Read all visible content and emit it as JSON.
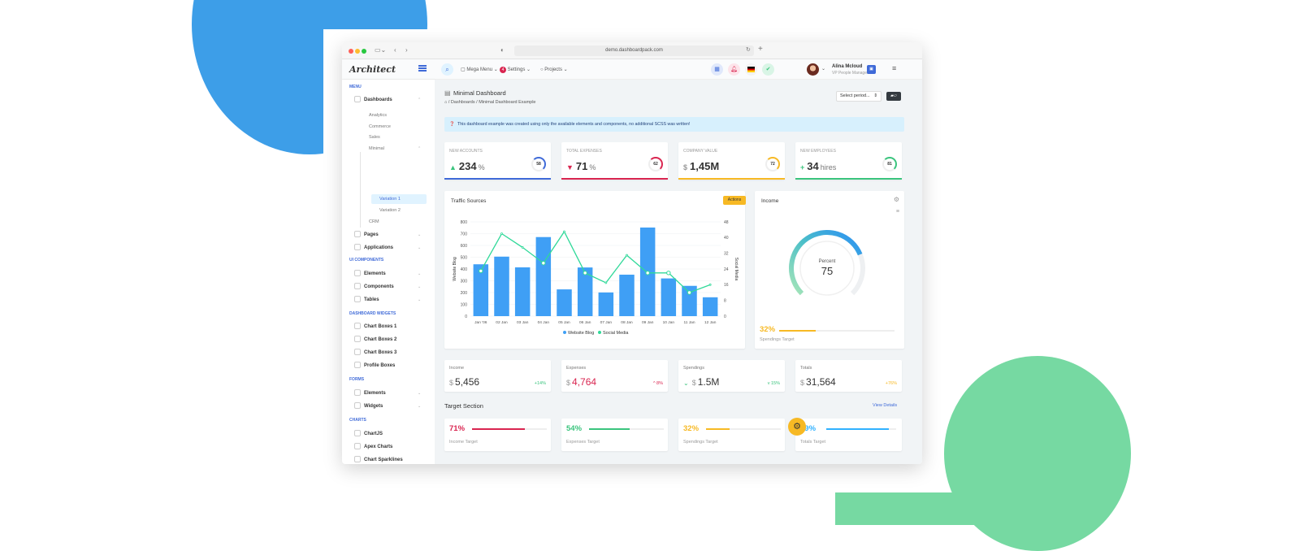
{
  "browser": {
    "url": "demo.dashboardpack.com"
  },
  "header": {
    "logo": "Architect",
    "menus": [
      "Mega Menu",
      "Settings",
      "Projects"
    ],
    "settings_badge": "4",
    "user_name": "Alina Mcloud",
    "user_role": "VP People Manager"
  },
  "sidebar": {
    "menu_head": "Menu",
    "dashboards": "Dashboards",
    "dash_subs": [
      "Analytics",
      "Commerce",
      "Sales",
      "Minimal"
    ],
    "minimal_subs": [
      "Variation 1",
      "Variation 2"
    ],
    "crm": "CRM",
    "pages": "Pages",
    "applications": "Applications",
    "ui_head": "UI Components",
    "ui_items": [
      "Elements",
      "Components",
      "Tables"
    ],
    "widgets_head": "Dashboard Widgets",
    "widget_items": [
      "Chart Boxes 1",
      "Chart Boxes 2",
      "Chart Boxes 3",
      "Profile Boxes"
    ],
    "forms_head": "Forms",
    "form_items": [
      "Elements",
      "Widgets"
    ],
    "charts_head": "Charts",
    "chart_items": [
      "ChartJS",
      "Apex Charts",
      "Chart Sparklines"
    ]
  },
  "page": {
    "title": "Minimal Dashboard",
    "breadcrumb": [
      "Dashboards",
      "Minimal Dashboard Example"
    ],
    "select": "Select period...",
    "alert": "This dashboard example was created using only the available elements and components, no additional SCSS was written!"
  },
  "kpis": [
    {
      "label": "New Accounts",
      "prefix": "▲",
      "value": "234",
      "unit": "%",
      "ring": "58",
      "color": "#3f6ad8",
      "arrow_color": "#3ac47d"
    },
    {
      "label": "Total Expenses",
      "prefix": "▼",
      "value": "71",
      "unit": "%",
      "ring": "62",
      "color": "#d92550",
      "arrow_color": "#d92550"
    },
    {
      "label": "Company Value",
      "prefix": "$",
      "value": "1,45M",
      "unit": "",
      "ring": "72",
      "color": "#f7b924",
      "arrow_color": "#999"
    },
    {
      "label": "New Employees",
      "prefix": "+",
      "value": "34",
      "unit": "hires",
      "ring": "81",
      "color": "#3ac47d",
      "arrow_color": "#3ac47d"
    }
  ],
  "traffic": {
    "title": "Traffic Sources",
    "action": "Actions"
  },
  "chart_data": {
    "type": "bar",
    "categories": [
      "Jan '06",
      "02 Jan",
      "03 Jan",
      "04 Jan",
      "05 Jan",
      "06 Jan",
      "07 Jan",
      "08 Jan",
      "09 Jan",
      "10 Jan",
      "11 Jan",
      "12 Jan"
    ],
    "series": [
      {
        "name": "Website Blog",
        "type": "bar",
        "axis": "left",
        "values": [
          440,
          505,
          414,
          671,
          227,
          413,
          201,
          352,
          752,
          320,
          257,
          160
        ]
      },
      {
        "name": "Social Media",
        "type": "line",
        "axis": "right",
        "values": [
          23,
          42,
          35,
          27,
          43,
          22,
          17,
          31,
          22,
          22,
          12,
          16
        ]
      }
    ],
    "ylabel": "Website Blog",
    "y2label": "Social Media",
    "ylim": [
      0,
      800
    ],
    "y2lim": [
      0,
      48
    ],
    "yticks": [
      0,
      100,
      200,
      300,
      400,
      500,
      600,
      700,
      800
    ],
    "y2ticks": [
      0,
      8,
      16,
      24,
      32,
      40,
      48
    ],
    "legend": "bottom",
    "colors": {
      "bar": "#3f9ff5",
      "line": "#30d999"
    }
  },
  "income_card": {
    "title": "Income",
    "gauge_label": "Percent",
    "gauge_value": "75",
    "gauge_percent": 75,
    "target_value": "32%",
    "target_percent": 32,
    "target_label": "Spendings Target"
  },
  "summary": [
    {
      "label": "Income",
      "currency": "$",
      "value": "5,456",
      "change": "+14%",
      "value_color": "#333",
      "change_color": "#3ac47d"
    },
    {
      "label": "Expenses",
      "currency": "$",
      "value": "4,764",
      "change": "^ 8%",
      "value_color": "#d92550",
      "change_color": "#d92550"
    },
    {
      "label": "Spendings",
      "currency": "$",
      "value": "1.5M",
      "change": "v 15%",
      "value_color": "#333",
      "change_color": "#3ac47d"
    },
    {
      "label": "Totals",
      "currency": "$",
      "value": "31,564",
      "change": "+76%",
      "value_color": "#333",
      "change_color": "#f7b924"
    }
  ],
  "target_section": {
    "title": "Target Section",
    "link": "View Details"
  },
  "targets": [
    {
      "value": "71%",
      "percent": 71,
      "label": "Income Target",
      "color": "#d92550"
    },
    {
      "value": "54%",
      "percent": 54,
      "label": "Expenses Target",
      "color": "#3ac47d"
    },
    {
      "value": "32%",
      "percent": 32,
      "label": "Spendings Target",
      "color": "#f7b924"
    },
    {
      "value": "89%",
      "percent": 89,
      "label": "Totals Target",
      "color": "#30b1ff"
    }
  ]
}
